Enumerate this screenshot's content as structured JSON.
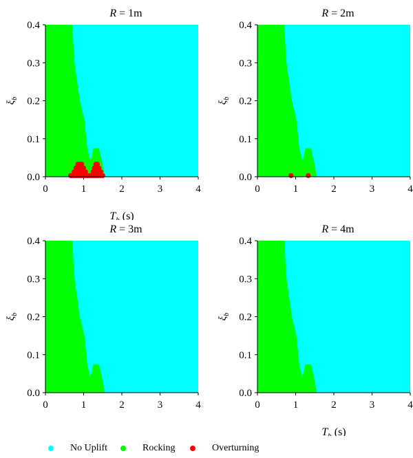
{
  "chart_data": [
    {
      "type": "scatter",
      "title_var": "R",
      "title_value": "= 1m",
      "xlabel_var": "T",
      "xlabel_sub": "b",
      "xlabel_unit": "(s)",
      "ylabel_var": "ξ",
      "ylabel_sub": "b",
      "xlim": [
        0,
        4
      ],
      "ylim": [
        0,
        0.4
      ],
      "xticks": [
        "0",
        "1",
        "2",
        "3",
        "4"
      ],
      "yticks": [
        "0.0",
        "0.1",
        "0.2",
        "0.3",
        "0.4"
      ],
      "background_class": "No Uplift",
      "regions": [
        {
          "name": "Rocking",
          "boundary": [
            [
              0,
              0
            ],
            [
              0,
              0.4
            ],
            [
              0.7,
              0.4
            ],
            [
              0.76,
              0.3
            ],
            [
              0.9,
              0.2
            ],
            [
              1.02,
              0.15
            ],
            [
              1.1,
              0.07
            ],
            [
              1.18,
              0.04
            ],
            [
              1.25,
              0.075
            ],
            [
              1.4,
              0.075
            ],
            [
              1.5,
              0.03
            ],
            [
              1.55,
              0
            ]
          ]
        }
      ],
      "series": [
        {
          "name": "Overturning",
          "x": [
            0.66,
            0.7,
            0.75,
            0.8,
            0.85,
            0.9,
            0.95,
            1.0,
            1.05,
            1.1,
            1.15,
            0.75,
            0.8,
            0.85,
            0.9,
            0.95,
            1.0,
            1.05,
            0.8,
            0.85,
            0.9,
            0.95,
            1.0,
            0.85,
            0.9,
            0.95,
            1.2,
            1.25,
            1.3,
            1.35,
            1.4,
            1.45,
            1.5,
            1.25,
            1.3,
            1.35,
            1.4,
            1.45,
            1.28,
            1.32,
            1.36,
            1.4,
            1.32,
            1.36
          ],
          "y": [
            0.003,
            0.003,
            0.003,
            0.003,
            0.003,
            0.003,
            0.003,
            0.003,
            0.003,
            0.003,
            0.003,
            0.013,
            0.013,
            0.013,
            0.013,
            0.013,
            0.013,
            0.013,
            0.023,
            0.023,
            0.023,
            0.023,
            0.023,
            0.033,
            0.033,
            0.033,
            0.003,
            0.003,
            0.003,
            0.003,
            0.003,
            0.003,
            0.003,
            0.013,
            0.013,
            0.013,
            0.013,
            0.013,
            0.023,
            0.023,
            0.023,
            0.023,
            0.033,
            0.033
          ]
        }
      ]
    },
    {
      "type": "scatter",
      "title_var": "R",
      "title_value": "= 2m",
      "xlabel_var": "",
      "xlabel_sub": "",
      "xlabel_unit": "",
      "ylabel_var": "ξ",
      "ylabel_sub": "b",
      "xlim": [
        0,
        4
      ],
      "ylim": [
        0,
        0.4
      ],
      "xticks": [
        "0",
        "1",
        "2",
        "3",
        "4"
      ],
      "yticks": [
        "0.0",
        "0.1",
        "0.2",
        "0.3",
        "0.4"
      ],
      "background_class": "No Uplift",
      "regions": [
        {
          "name": "Rocking",
          "boundary": [
            [
              0,
              0
            ],
            [
              0,
              0.4
            ],
            [
              0.7,
              0.4
            ],
            [
              0.76,
              0.3
            ],
            [
              0.9,
              0.2
            ],
            [
              1.02,
              0.15
            ],
            [
              1.1,
              0.07
            ],
            [
              1.18,
              0.04
            ],
            [
              1.25,
              0.075
            ],
            [
              1.4,
              0.075
            ],
            [
              1.5,
              0.03
            ],
            [
              1.55,
              0
            ]
          ]
        }
      ],
      "series": [
        {
          "name": "Overturning",
          "x": [
            0.88,
            1.33
          ],
          "y": [
            0.003,
            0.003
          ]
        }
      ]
    },
    {
      "type": "scatter",
      "title_var": "R",
      "title_value": "= 3m",
      "xlabel_var": "",
      "xlabel_sub": "",
      "xlabel_unit": "",
      "ylabel_var": "ξ",
      "ylabel_sub": "b",
      "xlim": [
        0,
        4
      ],
      "ylim": [
        0,
        0.4
      ],
      "xticks": [
        "0",
        "1",
        "2",
        "3",
        "4"
      ],
      "yticks": [
        "0.0",
        "0.1",
        "0.2",
        "0.3",
        "0.4"
      ],
      "background_class": "No Uplift",
      "regions": [
        {
          "name": "Rocking",
          "boundary": [
            [
              0,
              0
            ],
            [
              0,
              0.4
            ],
            [
              0.7,
              0.4
            ],
            [
              0.76,
              0.3
            ],
            [
              0.9,
              0.2
            ],
            [
              1.02,
              0.15
            ],
            [
              1.1,
              0.07
            ],
            [
              1.18,
              0.04
            ],
            [
              1.25,
              0.075
            ],
            [
              1.4,
              0.075
            ],
            [
              1.5,
              0.03
            ],
            [
              1.55,
              0
            ]
          ]
        }
      ],
      "series": []
    },
    {
      "type": "scatter",
      "title_var": "R",
      "title_value": "= 4m",
      "xlabel_var": "T",
      "xlabel_sub": "b",
      "xlabel_unit": "(s)",
      "ylabel_var": "ξ",
      "ylabel_sub": "b",
      "xlim": [
        0,
        4
      ],
      "ylim": [
        0,
        0.4
      ],
      "xticks": [
        "0",
        "1",
        "2",
        "3",
        "4"
      ],
      "yticks": [
        "0.0",
        "0.1",
        "0.2",
        "0.3",
        "0.4"
      ],
      "background_class": "No Uplift",
      "regions": [
        {
          "name": "Rocking",
          "boundary": [
            [
              0,
              0
            ],
            [
              0,
              0.4
            ],
            [
              0.7,
              0.4
            ],
            [
              0.76,
              0.3
            ],
            [
              0.9,
              0.2
            ],
            [
              1.02,
              0.15
            ],
            [
              1.1,
              0.07
            ],
            [
              1.18,
              0.04
            ],
            [
              1.25,
              0.075
            ],
            [
              1.4,
              0.075
            ],
            [
              1.5,
              0.03
            ],
            [
              1.55,
              0
            ]
          ]
        }
      ],
      "series": []
    }
  ],
  "legend": {
    "placement": "bottom",
    "items": [
      {
        "label": "No Uplift",
        "color": "#00ffff"
      },
      {
        "label": "Rocking",
        "color": "#00ff00"
      },
      {
        "label": "Overturning",
        "color": "#ff0000"
      }
    ]
  },
  "colors": {
    "No Uplift": "#00ffff",
    "Rocking": "#00ff00",
    "Overturning": "#ff0000"
  }
}
